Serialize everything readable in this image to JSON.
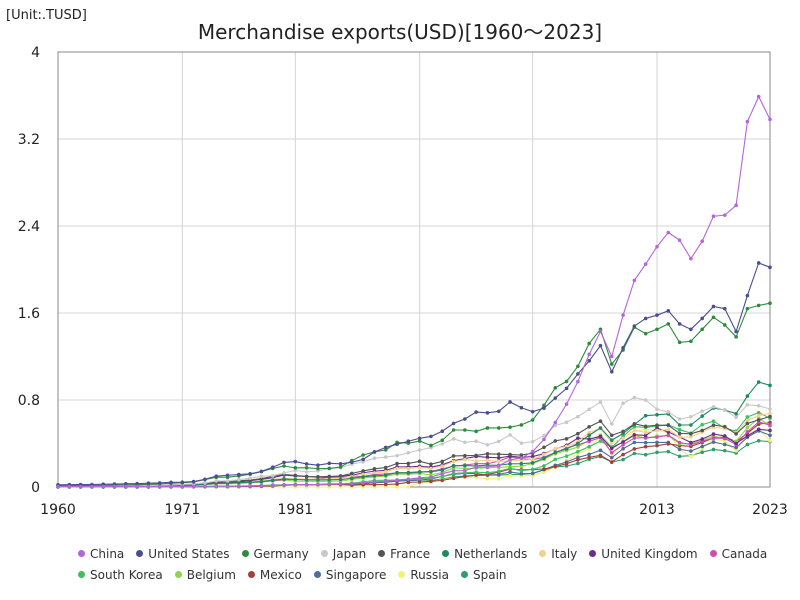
{
  "chart_data": {
    "type": "line",
    "title": "Merchandise exports(USD)[1960～2023]",
    "unit": "[Unit:.TUSD]",
    "xlim": [
      1960,
      2023
    ],
    "ylim": [
      0,
      4
    ],
    "xticks": [
      "1960",
      "1971",
      "1981",
      "1992",
      "2002",
      "2013",
      "2023"
    ],
    "yticks": [
      "0",
      "0.8",
      "1.6",
      "2.4",
      "3.2",
      "4"
    ],
    "grid": true,
    "legend_position": "bottom",
    "x": [
      1960,
      1961,
      1962,
      1963,
      1964,
      1965,
      1966,
      1967,
      1968,
      1969,
      1970,
      1971,
      1972,
      1973,
      1974,
      1975,
      1976,
      1977,
      1978,
      1979,
      1980,
      1981,
      1982,
      1983,
      1984,
      1985,
      1986,
      1987,
      1988,
      1989,
      1990,
      1991,
      1992,
      1993,
      1994,
      1995,
      1996,
      1997,
      1998,
      1999,
      2000,
      2001,
      2002,
      2003,
      2004,
      2005,
      2006,
      2007,
      2008,
      2009,
      2010,
      2011,
      2012,
      2013,
      2014,
      2015,
      2016,
      2017,
      2018,
      2019,
      2020,
      2021,
      2022,
      2023
    ],
    "series": [
      {
        "name": "China",
        "color": "#b366d9",
        "values": [
          0.003,
          0.003,
          0.003,
          0.003,
          0.003,
          0.004,
          0.004,
          0.004,
          0.004,
          0.004,
          0.004,
          0.004,
          0.005,
          0.007,
          0.008,
          0.008,
          0.008,
          0.009,
          0.01,
          0.014,
          0.018,
          0.022,
          0.022,
          0.022,
          0.026,
          0.027,
          0.031,
          0.039,
          0.048,
          0.053,
          0.062,
          0.072,
          0.085,
          0.092,
          0.121,
          0.149,
          0.151,
          0.183,
          0.184,
          0.195,
          0.249,
          0.266,
          0.326,
          0.438,
          0.593,
          0.762,
          0.969,
          1.22,
          1.43,
          1.2,
          1.58,
          1.9,
          2.05,
          2.21,
          2.34,
          2.27,
          2.1,
          2.26,
          2.49,
          2.5,
          2.59,
          3.36,
          3.59,
          3.38
        ]
      },
      {
        "name": "United States",
        "color": "#4a4f8f",
        "values": [
          0.02,
          0.021,
          0.022,
          0.023,
          0.026,
          0.027,
          0.03,
          0.031,
          0.035,
          0.038,
          0.043,
          0.044,
          0.05,
          0.071,
          0.099,
          0.108,
          0.115,
          0.121,
          0.143,
          0.182,
          0.226,
          0.234,
          0.212,
          0.201,
          0.218,
          0.213,
          0.227,
          0.254,
          0.322,
          0.364,
          0.393,
          0.421,
          0.448,
          0.465,
          0.513,
          0.585,
          0.625,
          0.689,
          0.682,
          0.696,
          0.782,
          0.729,
          0.693,
          0.725,
          0.818,
          0.907,
          1.04,
          1.16,
          1.3,
          1.06,
          1.28,
          1.48,
          1.55,
          1.58,
          1.62,
          1.5,
          1.45,
          1.55,
          1.66,
          1.64,
          1.43,
          1.76,
          2.06,
          2.02
        ]
      },
      {
        "name": "Germany",
        "color": "#2e8b3e",
        "values": [
          0.011,
          0.013,
          0.013,
          0.015,
          0.016,
          0.018,
          0.02,
          0.022,
          0.025,
          0.03,
          0.034,
          0.039,
          0.046,
          0.068,
          0.09,
          0.09,
          0.102,
          0.118,
          0.142,
          0.171,
          0.193,
          0.176,
          0.176,
          0.169,
          0.171,
          0.184,
          0.243,
          0.294,
          0.323,
          0.341,
          0.41,
          0.403,
          0.422,
          0.382,
          0.43,
          0.524,
          0.524,
          0.512,
          0.543,
          0.543,
          0.55,
          0.571,
          0.616,
          0.751,
          0.912,
          0.971,
          1.11,
          1.32,
          1.45,
          1.13,
          1.26,
          1.47,
          1.41,
          1.45,
          1.5,
          1.33,
          1.34,
          1.45,
          1.56,
          1.49,
          1.38,
          1.64,
          1.67,
          1.69
        ]
      },
      {
        "name": "Japan",
        "color": "#c8c8c8",
        "values": [
          0.004,
          0.004,
          0.005,
          0.005,
          0.007,
          0.008,
          0.01,
          0.01,
          0.013,
          0.016,
          0.019,
          0.024,
          0.029,
          0.037,
          0.056,
          0.056,
          0.067,
          0.081,
          0.098,
          0.103,
          0.13,
          0.152,
          0.139,
          0.147,
          0.17,
          0.177,
          0.211,
          0.231,
          0.265,
          0.275,
          0.288,
          0.315,
          0.34,
          0.362,
          0.397,
          0.443,
          0.411,
          0.421,
          0.388,
          0.419,
          0.479,
          0.403,
          0.417,
          0.472,
          0.566,
          0.595,
          0.647,
          0.714,
          0.781,
          0.581,
          0.77,
          0.823,
          0.799,
          0.715,
          0.69,
          0.625,
          0.645,
          0.698,
          0.738,
          0.706,
          0.641,
          0.756,
          0.747,
          0.717
        ]
      },
      {
        "name": "France",
        "color": "#555555",
        "values": [
          0.007,
          0.007,
          0.008,
          0.008,
          0.009,
          0.01,
          0.011,
          0.011,
          0.013,
          0.015,
          0.018,
          0.021,
          0.026,
          0.036,
          0.046,
          0.053,
          0.057,
          0.064,
          0.077,
          0.098,
          0.116,
          0.106,
          0.097,
          0.094,
          0.097,
          0.101,
          0.125,
          0.148,
          0.167,
          0.179,
          0.216,
          0.217,
          0.236,
          0.21,
          0.235,
          0.286,
          0.288,
          0.29,
          0.305,
          0.302,
          0.298,
          0.294,
          0.311,
          0.365,
          0.424,
          0.443,
          0.49,
          0.553,
          0.605,
          0.476,
          0.511,
          0.581,
          0.558,
          0.568,
          0.567,
          0.493,
          0.489,
          0.52,
          0.569,
          0.555,
          0.488,
          0.584,
          0.617,
          0.648
        ]
      },
      {
        "name": "Netherlands",
        "color": "#1f8a5e",
        "values": [
          0.004,
          0.004,
          0.005,
          0.005,
          0.006,
          0.006,
          0.007,
          0.007,
          0.008,
          0.01,
          0.012,
          0.014,
          0.017,
          0.024,
          0.033,
          0.035,
          0.04,
          0.044,
          0.05,
          0.063,
          0.074,
          0.069,
          0.066,
          0.065,
          0.066,
          0.068,
          0.08,
          0.093,
          0.103,
          0.108,
          0.132,
          0.133,
          0.14,
          0.14,
          0.155,
          0.196,
          0.197,
          0.194,
          0.201,
          0.2,
          0.213,
          0.214,
          0.222,
          0.264,
          0.318,
          0.35,
          0.401,
          0.476,
          0.542,
          0.431,
          0.492,
          0.574,
          0.656,
          0.664,
          0.672,
          0.57,
          0.57,
          0.652,
          0.726,
          0.708,
          0.674,
          0.836,
          0.965,
          0.935
        ]
      },
      {
        "name": "Italy",
        "color": "#f5d08a",
        "values": [
          0.004,
          0.004,
          0.005,
          0.005,
          0.006,
          0.007,
          0.008,
          0.009,
          0.01,
          0.012,
          0.013,
          0.015,
          0.019,
          0.022,
          0.03,
          0.035,
          0.037,
          0.045,
          0.056,
          0.072,
          0.078,
          0.075,
          0.073,
          0.073,
          0.074,
          0.079,
          0.097,
          0.116,
          0.128,
          0.141,
          0.17,
          0.169,
          0.178,
          0.169,
          0.191,
          0.234,
          0.252,
          0.24,
          0.245,
          0.235,
          0.24,
          0.244,
          0.254,
          0.3,
          0.353,
          0.373,
          0.417,
          0.5,
          0.54,
          0.406,
          0.447,
          0.523,
          0.501,
          0.518,
          0.529,
          0.457,
          0.461,
          0.506,
          0.549,
          0.537,
          0.499,
          0.61,
          0.657,
          0.677
        ]
      },
      {
        "name": "United Kingdom",
        "color": "#6a2e8a",
        "values": [
          0.01,
          0.011,
          0.011,
          0.012,
          0.012,
          0.014,
          0.014,
          0.014,
          0.015,
          0.017,
          0.019,
          0.022,
          0.024,
          0.03,
          0.039,
          0.044,
          0.046,
          0.058,
          0.071,
          0.086,
          0.11,
          0.102,
          0.097,
          0.091,
          0.093,
          0.101,
          0.107,
          0.131,
          0.146,
          0.153,
          0.185,
          0.185,
          0.19,
          0.182,
          0.204,
          0.242,
          0.261,
          0.281,
          0.273,
          0.268,
          0.284,
          0.273,
          0.28,
          0.307,
          0.349,
          0.384,
          0.449,
          0.441,
          0.465,
          0.355,
          0.416,
          0.48,
          0.474,
          0.542,
          0.506,
          0.46,
          0.409,
          0.441,
          0.487,
          0.47,
          0.4,
          0.47,
          0.53,
          0.52
        ]
      },
      {
        "name": "Canada",
        "color": "#c94fb0",
        "values": [
          0.006,
          0.006,
          0.006,
          0.007,
          0.008,
          0.008,
          0.01,
          0.011,
          0.013,
          0.014,
          0.017,
          0.018,
          0.021,
          0.026,
          0.034,
          0.034,
          0.039,
          0.043,
          0.048,
          0.058,
          0.068,
          0.072,
          0.071,
          0.077,
          0.089,
          0.091,
          0.091,
          0.098,
          0.114,
          0.12,
          0.13,
          0.128,
          0.134,
          0.145,
          0.166,
          0.192,
          0.202,
          0.215,
          0.214,
          0.238,
          0.277,
          0.261,
          0.252,
          0.273,
          0.317,
          0.36,
          0.388,
          0.42,
          0.455,
          0.316,
          0.388,
          0.45,
          0.455,
          0.458,
          0.476,
          0.409,
          0.39,
          0.421,
          0.45,
          0.447,
          0.39,
          0.507,
          0.598,
          0.569
        ]
      },
      {
        "name": "South Korea",
        "color": "#3fbf5f",
        "values": [
          0.0,
          0.0,
          0.0,
          0.0,
          0.0,
          0.0,
          0.0,
          0.0,
          0.001,
          0.001,
          0.001,
          0.001,
          0.002,
          0.003,
          0.004,
          0.005,
          0.008,
          0.01,
          0.013,
          0.015,
          0.017,
          0.021,
          0.022,
          0.024,
          0.029,
          0.03,
          0.035,
          0.047,
          0.061,
          0.062,
          0.065,
          0.072,
          0.077,
          0.082,
          0.096,
          0.125,
          0.13,
          0.136,
          0.132,
          0.144,
          0.172,
          0.15,
          0.162,
          0.194,
          0.254,
          0.284,
          0.325,
          0.371,
          0.422,
          0.364,
          0.466,
          0.555,
          0.548,
          0.56,
          0.573,
          0.527,
          0.495,
          0.574,
          0.605,
          0.542,
          0.513,
          0.644,
          0.684,
          0.632
        ]
      },
      {
        "name": "Belgium",
        "color": "#8ed64a",
        "values": [
          0.004,
          0.004,
          0.004,
          0.005,
          0.005,
          0.006,
          0.006,
          0.007,
          0.008,
          0.009,
          0.011,
          0.012,
          0.016,
          0.022,
          0.028,
          0.029,
          0.033,
          0.037,
          0.044,
          0.056,
          0.064,
          0.055,
          0.052,
          0.052,
          0.052,
          0.054,
          0.069,
          0.083,
          0.092,
          0.1,
          0.118,
          0.118,
          0.123,
          0.112,
          0.133,
          0.176,
          0.17,
          0.172,
          0.177,
          0.179,
          0.188,
          0.19,
          0.216,
          0.255,
          0.306,
          0.335,
          0.367,
          0.432,
          0.477,
          0.37,
          0.409,
          0.476,
          0.446,
          0.468,
          0.472,
          0.398,
          0.398,
          0.43,
          0.468,
          0.445,
          0.42,
          0.545,
          0.633,
          0.562
        ]
      },
      {
        "name": "Mexico",
        "color": "#a0403a",
        "values": [
          0.001,
          0.001,
          0.001,
          0.001,
          0.001,
          0.001,
          0.001,
          0.001,
          0.001,
          0.001,
          0.001,
          0.001,
          0.002,
          0.002,
          0.003,
          0.003,
          0.004,
          0.004,
          0.006,
          0.009,
          0.015,
          0.02,
          0.021,
          0.022,
          0.024,
          0.022,
          0.016,
          0.021,
          0.021,
          0.023,
          0.027,
          0.043,
          0.046,
          0.052,
          0.061,
          0.08,
          0.096,
          0.11,
          0.117,
          0.136,
          0.166,
          0.158,
          0.161,
          0.165,
          0.188,
          0.214,
          0.25,
          0.272,
          0.291,
          0.23,
          0.298,
          0.35,
          0.371,
          0.38,
          0.397,
          0.381,
          0.374,
          0.409,
          0.451,
          0.461,
          0.417,
          0.495,
          0.578,
          0.593
        ]
      },
      {
        "name": "Singapore",
        "color": "#4a6f9a",
        "values": [
          0.001,
          0.001,
          0.001,
          0.001,
          0.001,
          0.001,
          0.001,
          0.001,
          0.001,
          0.002,
          0.002,
          0.002,
          0.002,
          0.004,
          0.006,
          0.005,
          0.007,
          0.008,
          0.01,
          0.014,
          0.019,
          0.021,
          0.021,
          0.022,
          0.024,
          0.023,
          0.022,
          0.029,
          0.039,
          0.045,
          0.053,
          0.059,
          0.064,
          0.074,
          0.097,
          0.118,
          0.125,
          0.125,
          0.11,
          0.115,
          0.138,
          0.122,
          0.125,
          0.16,
          0.199,
          0.23,
          0.272,
          0.3,
          0.338,
          0.269,
          0.352,
          0.41,
          0.408,
          0.41,
          0.41,
          0.347,
          0.33,
          0.373,
          0.413,
          0.391,
          0.363,
          0.457,
          0.516,
          0.476
        ]
      },
      {
        "name": "Russia",
        "color": "#f0f07a",
        "values": [
          0.0,
          0.0,
          0.0,
          0.0,
          0.0,
          0.0,
          0.0,
          0.0,
          0.0,
          0.0,
          0.0,
          0.0,
          0.0,
          0.0,
          0.0,
          0.0,
          0.0,
          0.0,
          0.0,
          0.0,
          0.0,
          0.0,
          0.0,
          0.0,
          0.0,
          0.0,
          0.0,
          0.0,
          0.0,
          0.0,
          0.0,
          0.0,
          0.042,
          0.044,
          0.067,
          0.082,
          0.09,
          0.087,
          0.075,
          0.076,
          0.105,
          0.1,
          0.107,
          0.136,
          0.183,
          0.242,
          0.302,
          0.352,
          0.467,
          0.3,
          0.397,
          0.515,
          0.527,
          0.523,
          0.497,
          0.34,
          0.282,
          0.353,
          0.443,
          0.42,
          0.333,
          0.492,
          0.532,
          0.425
        ]
      },
      {
        "name": "Spain",
        "color": "#2f9e6a",
        "values": [
          0.001,
          0.001,
          0.001,
          0.001,
          0.001,
          0.001,
          0.001,
          0.001,
          0.002,
          0.002,
          0.002,
          0.003,
          0.004,
          0.005,
          0.007,
          0.008,
          0.009,
          0.01,
          0.013,
          0.018,
          0.02,
          0.02,
          0.02,
          0.02,
          0.023,
          0.024,
          0.027,
          0.034,
          0.04,
          0.044,
          0.055,
          0.059,
          0.065,
          0.061,
          0.073,
          0.092,
          0.102,
          0.105,
          0.109,
          0.11,
          0.115,
          0.117,
          0.125,
          0.157,
          0.183,
          0.193,
          0.216,
          0.255,
          0.28,
          0.228,
          0.253,
          0.308,
          0.297,
          0.318,
          0.325,
          0.282,
          0.288,
          0.32,
          0.345,
          0.334,
          0.313,
          0.39,
          0.425,
          0.418
        ]
      }
    ]
  }
}
